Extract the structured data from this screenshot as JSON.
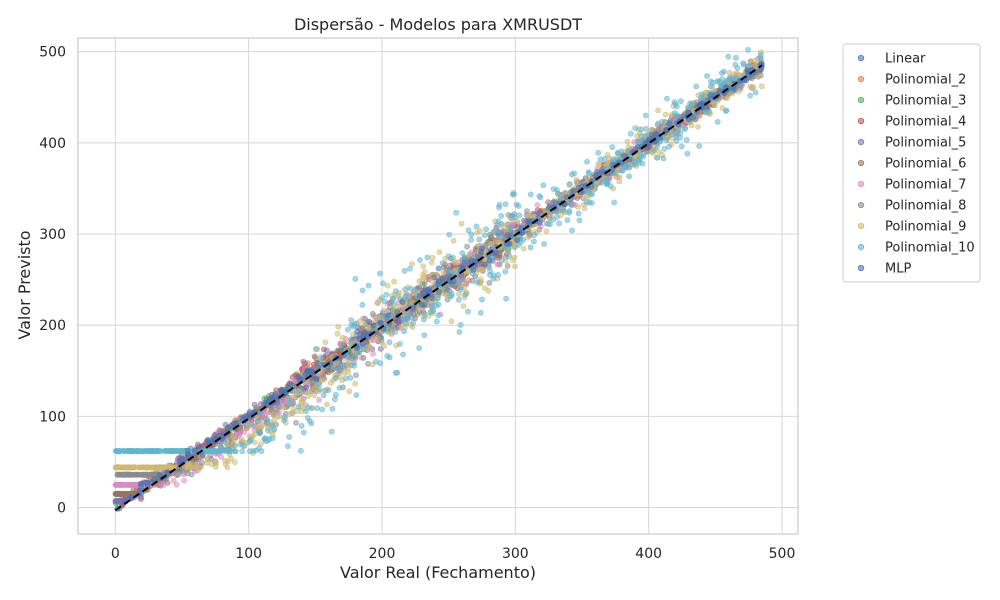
{
  "chart_data": {
    "type": "scatter",
    "title": "Dispersão - Modelos para XMRUSDT",
    "xlabel": "Valor Real (Fechamento)",
    "ylabel": "Valor Previsto",
    "xlim": [
      -28,
      512
    ],
    "ylim": [
      -29,
      515
    ],
    "xticks": [
      0,
      100,
      200,
      300,
      400,
      500
    ],
    "yticks": [
      0,
      100,
      200,
      300,
      400,
      500
    ],
    "grid": true,
    "legend_position": "outside-top-right",
    "reference_line": {
      "x": [
        0,
        485
      ],
      "y": [
        -3,
        485
      ],
      "style": "dashed",
      "color": "#000000"
    },
    "series": [
      {
        "name": "Linear",
        "color": "#4c72b0",
        "floor": -3,
        "noise": 4
      },
      {
        "name": "Polinomial_2",
        "color": "#dd8452",
        "floor": -1,
        "noise": 5
      },
      {
        "name": "Polinomial_3",
        "color": "#55a868",
        "floor": 1,
        "noise": 5
      },
      {
        "name": "Polinomial_4",
        "color": "#c44e52",
        "floor": 4,
        "noise": 6
      },
      {
        "name": "Polinomial_5",
        "color": "#8172b3",
        "floor": 7,
        "noise": 6
      },
      {
        "name": "Polinomial_6",
        "color": "#937860",
        "floor": 15,
        "noise": 7
      },
      {
        "name": "Polinomial_7",
        "color": "#da8bc3",
        "floor": 25,
        "noise": 8
      },
      {
        "name": "Polinomial_8",
        "color": "#8c8c8c",
        "floor": 36,
        "noise": 9
      },
      {
        "name": "Polinomial_9",
        "color": "#ccb974",
        "floor": 44,
        "noise": 14
      },
      {
        "name": "Polinomial_10",
        "color": "#64b5cd",
        "floor": 62,
        "noise": 22
      },
      {
        "name": "MLP",
        "color": "#4c72b0",
        "floor": -3,
        "noise": 4
      }
    ]
  }
}
